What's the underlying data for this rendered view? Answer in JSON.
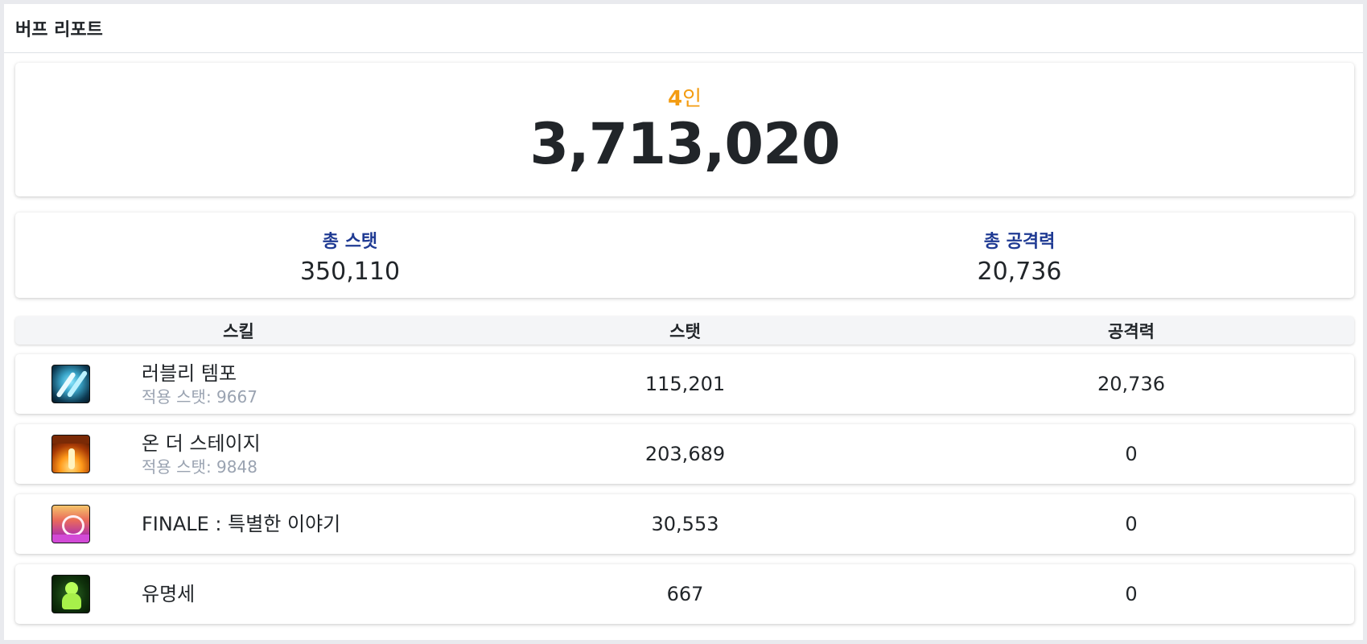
{
  "header": {
    "title": "버프 리포트"
  },
  "summary": {
    "party_count": "4",
    "party_suffix": "인",
    "total": "3,713,020"
  },
  "totals": {
    "stat_label": "총 스탯",
    "stat_value": "350,110",
    "atk_label": "총 공격력",
    "atk_value": "20,736"
  },
  "table": {
    "headers": {
      "skill": "스킬",
      "stat": "스탯",
      "atk": "공격력"
    },
    "rows": [
      {
        "icon": "lovely-tempo-icon",
        "name": "러블리 템포",
        "sub": "적용 스탯: 9667",
        "stat": "115,201",
        "atk": "20,736"
      },
      {
        "icon": "on-the-stage-icon",
        "name": "온 더 스테이지",
        "sub": "적용 스탯: 9848",
        "stat": "203,689",
        "atk": "0"
      },
      {
        "icon": "finale-icon",
        "name": "FINALE : 특별한 이야기",
        "sub": "",
        "stat": "30,553",
        "atk": "0"
      },
      {
        "icon": "fame-icon",
        "name": "유명세",
        "sub": "",
        "stat": "667",
        "atk": "0"
      }
    ]
  },
  "colors": {
    "party_accent": "#f39c12",
    "totals_label": "#1f3a93",
    "sub_text": "#9aa3b1"
  }
}
